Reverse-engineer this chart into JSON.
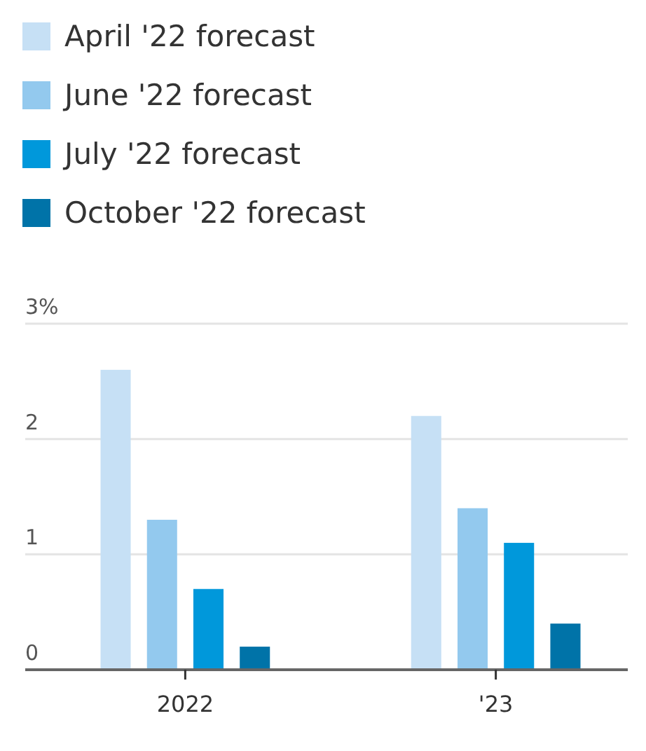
{
  "chart_data": {
    "type": "bar",
    "categories": [
      "2022",
      "'23"
    ],
    "series": [
      {
        "name": "April '22 forecast",
        "color": "#c6e0f5",
        "values": [
          2.6,
          2.2
        ]
      },
      {
        "name": "June '22 forecast",
        "color": "#93c9ee",
        "values": [
          1.3,
          1.4
        ]
      },
      {
        "name": "July '22 forecast",
        "color": "#0098db",
        "values": [
          0.7,
          1.1
        ]
      },
      {
        "name": "October '22 forecast",
        "color": "#0073a8",
        "values": [
          0.2,
          0.4
        ]
      }
    ],
    "ylim": [
      0,
      3
    ],
    "yticks": [
      0,
      1,
      2,
      {
        "value": 3,
        "label": "3%"
      }
    ],
    "grid": "y",
    "legend": "top left"
  }
}
